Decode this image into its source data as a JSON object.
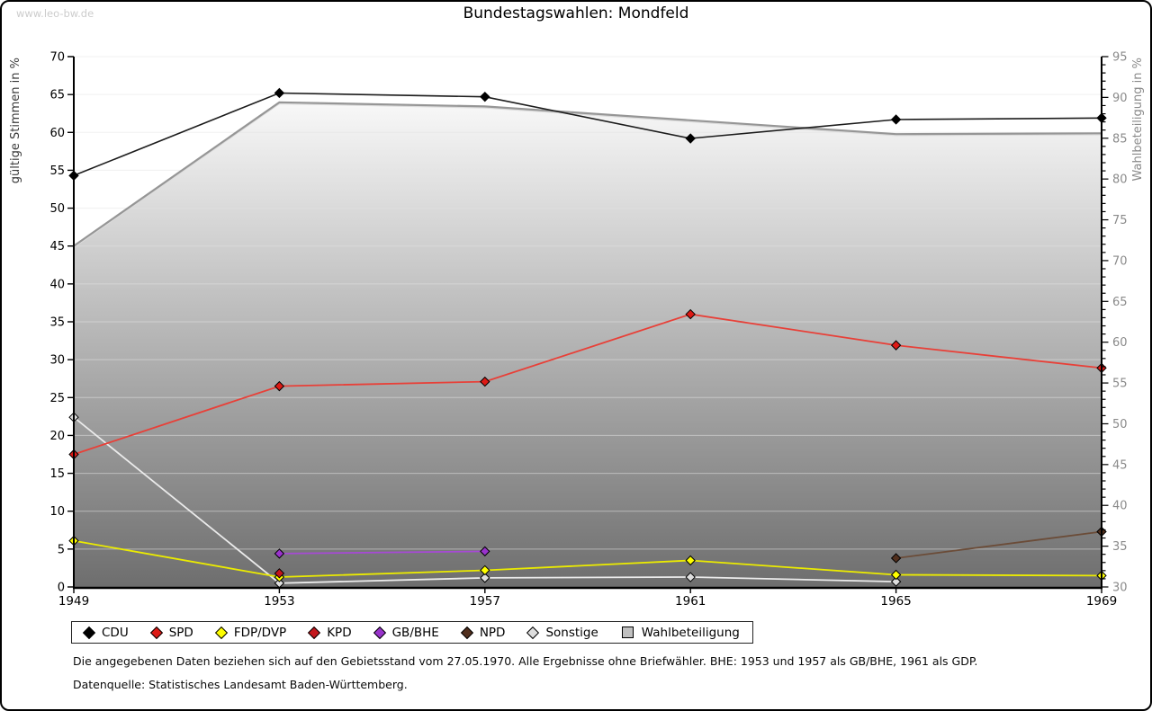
{
  "watermark": "www.leo-bw.de",
  "title": "Bundestagswahlen: Mondfeld",
  "footnotes": {
    "line1": "Die angegebenen Daten beziehen sich auf den Gebietsstand vom 27.05.1970. Alle Ergebnisse ohne Briefwähler. BHE: 1953 und 1957 als GB/BHE, 1961 als GDP.",
    "line2": "Datenquelle: Statistisches Landesamt Baden-Württemberg."
  },
  "chart_data": {
    "type": "line",
    "title": "Bundestagswahlen: Mondfeld",
    "x": [
      1949,
      1953,
      1957,
      1961,
      1965,
      1969
    ],
    "left_axis": {
      "label": "gültige Stimmen in %",
      "min": 0,
      "max": 70,
      "tick_step": 5,
      "ticks": [
        0,
        5,
        10,
        15,
        20,
        25,
        30,
        35,
        40,
        45,
        50,
        55,
        60,
        65,
        70
      ]
    },
    "right_axis": {
      "label": "Wahlbeteiligung in %",
      "min": 30,
      "max": 95,
      "tick_step": 5,
      "ticks": [
        30,
        35,
        40,
        45,
        50,
        55,
        60,
        65,
        70,
        75,
        80,
        85,
        90,
        95
      ]
    },
    "grid": "horizontal-left-axis-5",
    "legend_position": "bottom",
    "series": [
      {
        "name": "CDU",
        "axis": "left",
        "marker": "diamond",
        "marker_color": "#000000",
        "line_color": "#1c1c1c",
        "values": [
          54.3,
          65.2,
          64.7,
          59.2,
          61.7,
          61.9
        ]
      },
      {
        "name": "SPD",
        "axis": "left",
        "marker": "diamond",
        "marker_color": "#dd1a15",
        "line_color": "#e84038",
        "values": [
          17.5,
          26.5,
          27.1,
          36.0,
          31.9,
          28.9
        ]
      },
      {
        "name": "FDP/DVP",
        "axis": "left",
        "marker": "diamond",
        "marker_color": "#ffff00",
        "line_color": "#ebeb00",
        "values": [
          6.1,
          1.3,
          2.2,
          3.5,
          1.6,
          1.5
        ]
      },
      {
        "name": "KPD",
        "axis": "left",
        "marker": "diamond",
        "marker_color": "#c4161c",
        "line_color": "#c4161c",
        "values": [
          null,
          1.8,
          null,
          null,
          null,
          null
        ]
      },
      {
        "name": "GB/BHE",
        "axis": "left",
        "marker": "diamond",
        "marker_color": "#9933cc",
        "line_color": "#a64ad4",
        "values": [
          null,
          4.4,
          4.7,
          null,
          null,
          null
        ]
      },
      {
        "name": "NPD",
        "axis": "left",
        "marker": "diamond",
        "marker_color": "#512f1d",
        "line_color": "#6b4c38",
        "values": [
          null,
          null,
          null,
          null,
          3.8,
          7.3
        ]
      },
      {
        "name": "Sonstige",
        "axis": "left",
        "marker": "diamond",
        "marker_color": "#dedede",
        "line_color": "#ebebeb",
        "values": [
          22.4,
          0.5,
          1.2,
          1.3,
          0.7,
          null
        ]
      },
      {
        "name": "Wahlbeteiligung",
        "axis": "right",
        "marker": "square",
        "marker_color": "#c0c0c0",
        "line_color": "#969696",
        "area": true,
        "area_gradient": [
          "#fbfbfb",
          "#6e6e6e"
        ],
        "values": [
          71.8,
          89.4,
          88.9,
          87.2,
          85.5,
          85.6
        ]
      }
    ]
  }
}
